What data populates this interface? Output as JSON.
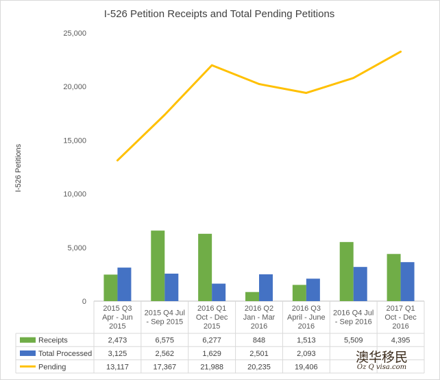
{
  "chart_data": {
    "type": "bar",
    "title": "I-526 Petition Receipts and Total Pending Petitions",
    "ylabel": "I-526 Petitions",
    "xlabel": "",
    "ylim": [
      0,
      25000
    ],
    "yticks": [
      0,
      5000,
      10000,
      15000,
      20000,
      25000
    ],
    "ytick_labels": [
      "0",
      "5,000",
      "10,000",
      "15,000",
      "20,000",
      "25,000"
    ],
    "grid": false,
    "legend": "data-table-left",
    "categories": [
      [
        "2015 Q3",
        "Apr - Jun",
        "2015"
      ],
      [
        "2015 Q4 Jul",
        "- Sep 2015"
      ],
      [
        "2016 Q1",
        "Oct - Dec",
        "2015"
      ],
      [
        "2016 Q2",
        "Jan - Mar",
        "2016"
      ],
      [
        "2016 Q3",
        "April - June",
        "2016"
      ],
      [
        "2016 Q4 Jul",
        "- Sep 2016"
      ],
      [
        "2017 Q1",
        "Oct - Dec",
        "2016"
      ]
    ],
    "series": [
      {
        "name": "Receipts",
        "type": "bar",
        "color": "#70ad47",
        "values": [
          2473,
          6575,
          6277,
          848,
          1513,
          5509,
          4395
        ],
        "labels": [
          "2,473",
          "6,575",
          "6,277",
          "848",
          "1,513",
          "5,509",
          "4,395"
        ]
      },
      {
        "name": "Total Processed",
        "type": "bar",
        "color": "#4472c4",
        "values": [
          3125,
          2562,
          1629,
          2501,
          2093,
          3185,
          3633
        ],
        "labels": [
          "3,125",
          "2,562",
          "1,629",
          "2,501",
          "2,093",
          "",
          ""
        ]
      },
      {
        "name": "Pending",
        "type": "line",
        "color": "#ffc000",
        "values": [
          13117,
          17367,
          21988,
          20235,
          19406,
          20798,
          23250
        ],
        "labels": [
          "13,117",
          "17,367",
          "21,988",
          "20,235",
          "19,406",
          "",
          ""
        ]
      }
    ]
  },
  "watermark": {
    "text": "澳华移民",
    "subtext": "Oz Q visa.com"
  }
}
